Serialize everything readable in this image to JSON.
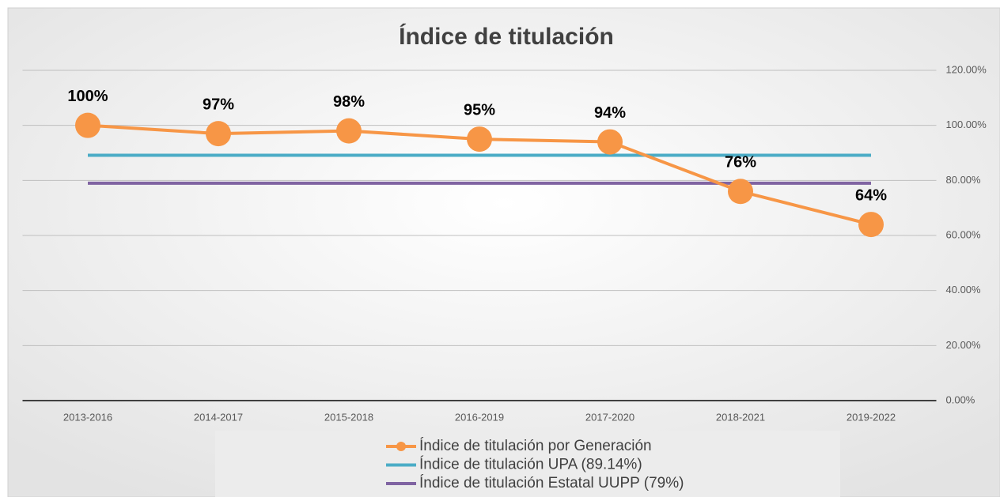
{
  "chart_data": {
    "type": "line",
    "title": "Índice de titulación",
    "categories": [
      "2013-2016",
      "2014-2017",
      "2015-2018",
      "2016-2019",
      "2017-2020",
      "2018-2021",
      "2019-2022"
    ],
    "series": [
      {
        "name": "Índice de titulación por Generación",
        "color": "#f79646",
        "marker": "circle",
        "values": [
          100,
          97,
          98,
          95,
          94,
          76,
          64
        ],
        "value_labels": [
          "100%",
          "97%",
          "98%",
          "95%",
          "94%",
          "76%",
          "64%"
        ]
      },
      {
        "name": "Índice de titulación UPA (89.14%)",
        "color": "#4bacc6",
        "values": [
          89.14,
          89.14,
          89.14,
          89.14,
          89.14,
          89.14,
          89.14
        ]
      },
      {
        "name": "Índice de titulación Estatal UUPP (79%)",
        "color": "#8064a2",
        "values": [
          79,
          79,
          79,
          79,
          79,
          79,
          79
        ]
      }
    ],
    "ylim": [
      0,
      120
    ],
    "yticks": [
      {
        "value": 0,
        "label": "0.00%"
      },
      {
        "value": 20,
        "label": "20.00%"
      },
      {
        "value": 40,
        "label": "40.00%"
      },
      {
        "value": 60,
        "label": "60.00%"
      },
      {
        "value": 80,
        "label": "80.00%"
      },
      {
        "value": 100,
        "label": "100.00%"
      },
      {
        "value": 120,
        "label": "120.00%"
      }
    ],
    "y_axis_position": "right",
    "grid": true,
    "legend": "bottom"
  }
}
